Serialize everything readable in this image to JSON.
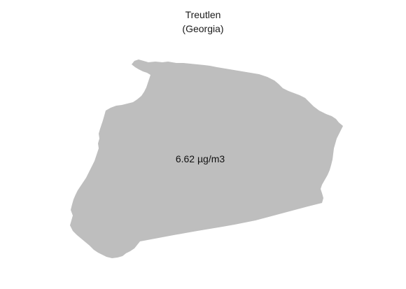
{
  "map": {
    "title": "Treutlen",
    "subtitle": "(Georgia)",
    "region_value_label": "6.62 µg/m3",
    "region_fill_color": "#bebebe",
    "background_color": "#ffffff"
  }
}
